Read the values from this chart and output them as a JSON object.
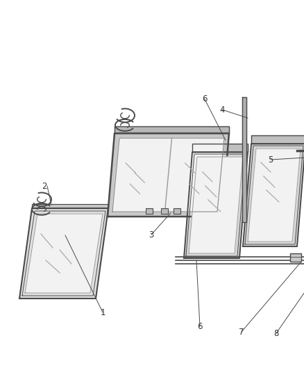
{
  "background_color": "#ffffff",
  "line_color": "#4a4a4a",
  "glass_fill": "#f2f2f2",
  "frame_fill": "#e0e0e0",
  "hatch_color": "#aaaaaa",
  "text_color": "#333333",
  "figsize": [
    4.38,
    5.33
  ],
  "dpi": 100,
  "label_fontsize": 8.5
}
